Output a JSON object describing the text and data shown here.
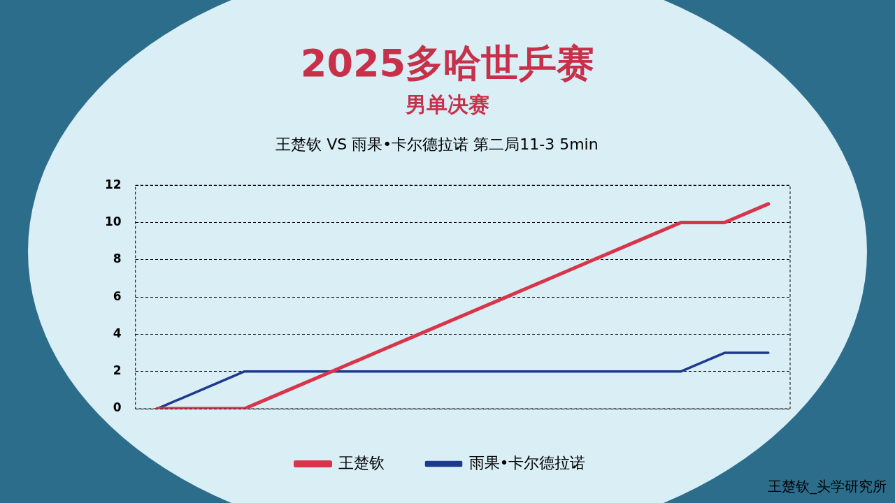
{
  "chart_data": {
    "type": "line",
    "title": "2025多哈世乒赛",
    "subtitle": "男单决赛",
    "annotations": [
      "王楚钦 VS 雨果•卡尔德拉诺 第二局11-3  5min",
      "王楚钦_头学研究所"
    ],
    "categories": [
      null,
      null,
      null,
      null,
      null,
      null,
      null,
      null,
      null,
      null,
      null,
      null,
      null,
      null,
      null
    ],
    "series": [
      {
        "name": "王楚钦",
        "color": "#d8354a",
        "values": [
          0,
          0,
          0,
          1,
          2,
          3,
          4,
          5,
          6,
          7,
          8,
          9,
          10,
          10,
          11
        ]
      },
      {
        "name": "雨果•卡尔德拉诺",
        "color": "#1c3a8e",
        "values": [
          0,
          1,
          2,
          2,
          2,
          2,
          2,
          2,
          2,
          2,
          2,
          2,
          2,
          3,
          3
        ]
      }
    ],
    "ylim": [
      0,
      12
    ],
    "yticks": [
      0,
      2,
      4,
      6,
      8,
      10,
      12
    ],
    "grid": "y",
    "legend": "bottom",
    "tick_labels": "y",
    "marker": "none",
    "line_style": "solid"
  }
}
